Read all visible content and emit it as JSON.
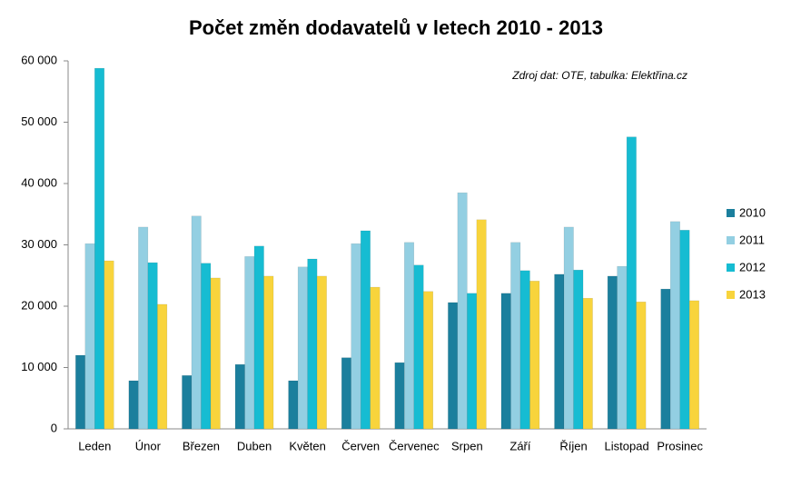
{
  "chart_data": {
    "type": "bar",
    "title": "Počet změn dodavatelů v letech 2010 - 2013",
    "annotation": "Zdroj dat: OTE, tabulka: Elektřina.cz",
    "categories": [
      "Leden",
      "Únor",
      "Březen",
      "Duben",
      "Květen",
      "Červen",
      "Červenec",
      "Srpen",
      "Září",
      "Říjen",
      "Listopad",
      "Prosinec"
    ],
    "series": [
      {
        "name": "2010",
        "color": "#1b7f9d",
        "values": [
          12000,
          7850,
          8700,
          10500,
          7850,
          11600,
          10800,
          20600,
          22100,
          25200,
          24900,
          22800
        ]
      },
      {
        "name": "2011",
        "color": "#93cfe2",
        "values": [
          30200,
          32900,
          34700,
          28100,
          26400,
          30200,
          30400,
          38500,
          30400,
          32900,
          26500,
          33800
        ]
      },
      {
        "name": "2012",
        "color": "#16bcd2",
        "values": [
          58800,
          27100,
          27000,
          29800,
          27700,
          32300,
          26700,
          22100,
          25800,
          25900,
          47600,
          32400
        ]
      },
      {
        "name": "2013",
        "color": "#f8d43c",
        "values": [
          27400,
          20300,
          24600,
          24900,
          24900,
          23100,
          22400,
          34100,
          24100,
          21300,
          20700,
          20900
        ]
      }
    ],
    "ylim": [
      0,
      60000
    ],
    "yticks": [
      0,
      {
        "value": 10000,
        "label": "10 000"
      },
      {
        "value": 20000,
        "label": "20 000"
      },
      {
        "value": 30000,
        "label": "30 000"
      },
      {
        "value": 40000,
        "label": "40 000"
      },
      {
        "value": 50000,
        "label": "50 000"
      },
      {
        "value": 60000,
        "label": "60 000"
      }
    ],
    "grid": false,
    "legend": "right"
  }
}
